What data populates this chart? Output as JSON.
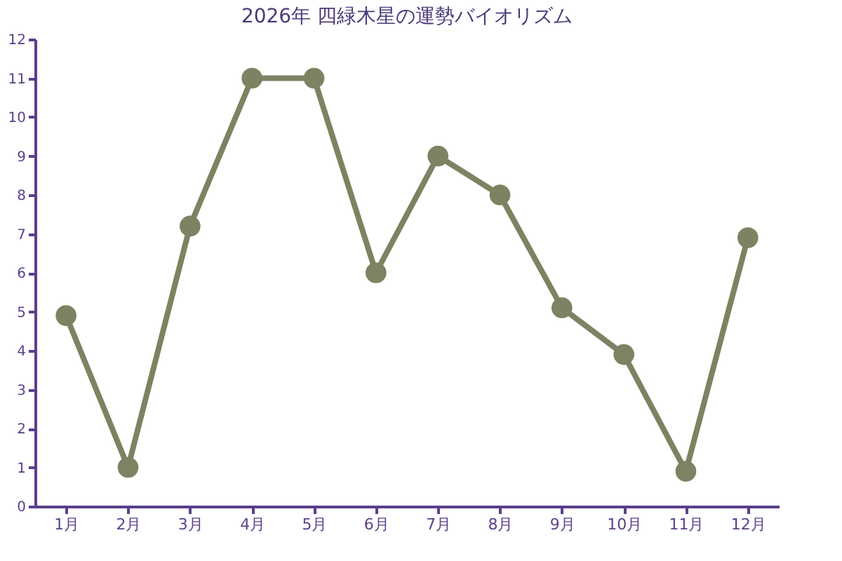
{
  "chart_data": {
    "type": "line",
    "title": "2026年 四緑木星の運勢バイオリズム",
    "categories": [
      "1月",
      "2月",
      "3月",
      "4月",
      "5月",
      "6月",
      "7月",
      "8月",
      "9月",
      "10月",
      "11月",
      "12月"
    ],
    "series": [
      {
        "color": "#7f8262",
        "values": [
          4.9,
          1,
          7.2,
          11,
          11,
          6,
          9,
          8,
          5.1,
          3.9,
          0.9,
          6.9
        ]
      }
    ],
    "ylim": [
      0,
      12
    ],
    "yticks": [
      0,
      1,
      2,
      3,
      4,
      5,
      6,
      7,
      8,
      9,
      10,
      11,
      12
    ],
    "marker": "circle"
  }
}
